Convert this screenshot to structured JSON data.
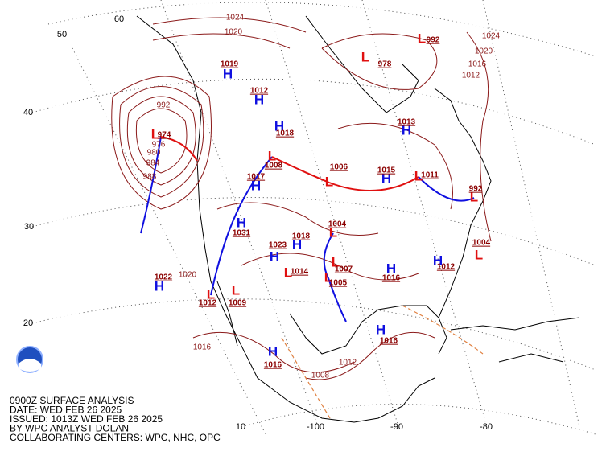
{
  "caption": [
    "0900Z SURFACE ANALYSIS",
    "DATE: WED FEB 26 2025",
    "ISSUED: 1013Z WED FEB 26 2025",
    "BY WPC ANALYST DOLAN",
    "COLLABORATING CENTERS: WPC, NHC, OPC"
  ],
  "latitude_labels": [
    "60",
    "50",
    "40",
    "30",
    "20",
    "10"
  ],
  "longitude_labels": [
    "-100",
    "-90",
    "-80"
  ],
  "highs": [
    {
      "label": "H",
      "pressure": 1022
    },
    {
      "label": "H",
      "pressure": 1018
    },
    {
      "label": "H",
      "pressure": 1017
    },
    {
      "label": "H",
      "pressure": 1031
    },
    {
      "label": "H",
      "pressure": 1023
    },
    {
      "label": "H",
      "pressure": 1018
    },
    {
      "label": "H",
      "pressure": 1013
    },
    {
      "label": "H",
      "pressure": 1015
    },
    {
      "label": "H",
      "pressure": 1016
    },
    {
      "label": "H",
      "pressure": 1016
    },
    {
      "label": "H",
      "pressure": 1016
    },
    {
      "label": "H",
      "pressure": 1012
    },
    {
      "label": "H",
      "pressure": 1019
    },
    {
      "label": "H",
      "pressure": 1012
    }
  ],
  "lows": [
    {
      "label": "L",
      "pressure": 974
    },
    {
      "label": "L",
      "pressure": 1008
    },
    {
      "label": "L",
      "pressure": 1006
    },
    {
      "label": "L",
      "pressure": 1004
    },
    {
      "label": "L",
      "pressure": 1005
    },
    {
      "label": "L",
      "pressure": 1009
    },
    {
      "label": "L",
      "pressure": 1012
    },
    {
      "label": "L",
      "pressure": 992
    },
    {
      "label": "L",
      "pressure": 978
    },
    {
      "label": "L",
      "pressure": 992
    },
    {
      "label": "L",
      "pressure": 1004
    },
    {
      "label": "L",
      "pressure": 1011
    },
    {
      "label": "L",
      "pressure": 1007
    },
    {
      "label": "L",
      "pressure": 1014
    }
  ],
  "isobar_labels": [
    1024,
    1020,
    992,
    988,
    984,
    980,
    976,
    1016,
    1012,
    1008,
    1020,
    1024,
    1020,
    1016,
    1012
  ]
}
